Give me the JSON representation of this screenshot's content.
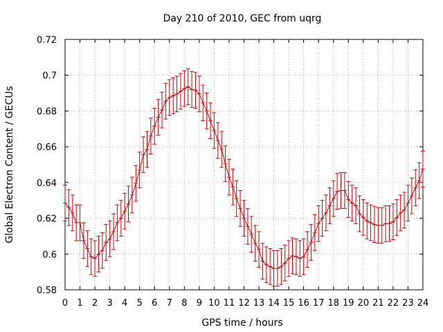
{
  "chart_data": {
    "type": "line",
    "title": "Day 210 of 2010, GEC from uqrg",
    "xlabel": "GPS time / hours",
    "ylabel": "Global Electron Content / GECUs",
    "xlim": [
      0,
      24
    ],
    "ylim": [
      0.58,
      0.72
    ],
    "xticks": [
      "0",
      "1",
      "2",
      "3",
      "4",
      "5",
      "6",
      "7",
      "8",
      "9",
      "10",
      "11",
      "12",
      "13",
      "14",
      "15",
      "16",
      "17",
      "18",
      "19",
      "20",
      "21",
      "22",
      "23",
      "24"
    ],
    "yticks": [
      "0.58",
      "0.6",
      "0.62",
      "0.64",
      "0.66",
      "0.68",
      "0.7",
      "0.72"
    ],
    "grid": true,
    "error_bar_half_width": 0.01,
    "series_color": "#cc0000",
    "x": [
      0,
      0.25,
      0.5,
      0.75,
      1,
      1.25,
      1.5,
      1.75,
      2,
      2.25,
      2.5,
      2.75,
      3,
      3.25,
      3.5,
      3.75,
      4,
      4.25,
      4.5,
      4.75,
      5,
      5.25,
      5.5,
      5.75,
      6,
      6.25,
      6.5,
      6.75,
      7,
      7.25,
      7.5,
      7.75,
      8,
      8.25,
      8.5,
      8.75,
      9,
      9.25,
      9.5,
      9.75,
      10,
      10.25,
      10.5,
      10.75,
      11,
      11.25,
      11.5,
      11.75,
      12,
      12.25,
      12.5,
      12.75,
      13,
      13.25,
      13.5,
      13.75,
      14,
      14.25,
      14.5,
      14.75,
      15,
      15.25,
      15.5,
      15.75,
      16,
      16.25,
      16.5,
      16.75,
      17,
      17.25,
      17.5,
      17.75,
      18,
      18.25,
      18.5,
      18.75,
      19,
      19.25,
      19.5,
      19.75,
      20,
      20.25,
      20.5,
      20.75,
      21,
      21.25,
      21.5,
      21.75,
      22,
      22.25,
      22.5,
      22.75,
      23,
      23.25,
      23.5,
      23.75,
      24
    ],
    "y": [
      0.6285,
      0.626,
      0.623,
      0.6175,
      0.6175,
      0.6075,
      0.603,
      0.5985,
      0.5975,
      0.6,
      0.602,
      0.6065,
      0.6085,
      0.6125,
      0.6175,
      0.62,
      0.624,
      0.628,
      0.633,
      0.6395,
      0.647,
      0.6555,
      0.6585,
      0.666,
      0.6715,
      0.6765,
      0.6805,
      0.6855,
      0.6875,
      0.6885,
      0.6895,
      0.691,
      0.6925,
      0.6935,
      0.692,
      0.6915,
      0.6895,
      0.6845,
      0.68,
      0.6745,
      0.669,
      0.6635,
      0.6585,
      0.6505,
      0.643,
      0.6375,
      0.631,
      0.6255,
      0.62,
      0.6155,
      0.611,
      0.606,
      0.6025,
      0.596,
      0.594,
      0.593,
      0.592,
      0.592,
      0.593,
      0.595,
      0.5975,
      0.599,
      0.5985,
      0.5975,
      0.5985,
      0.6025,
      0.6065,
      0.612,
      0.617,
      0.62,
      0.623,
      0.627,
      0.631,
      0.635,
      0.6355,
      0.6355,
      0.6305,
      0.6285,
      0.627,
      0.6225,
      0.6205,
      0.6185,
      0.6175,
      0.6165,
      0.616,
      0.616,
      0.617,
      0.617,
      0.618,
      0.6205,
      0.623,
      0.6245,
      0.6285,
      0.6325,
      0.637,
      0.641,
      0.6475
    ]
  }
}
